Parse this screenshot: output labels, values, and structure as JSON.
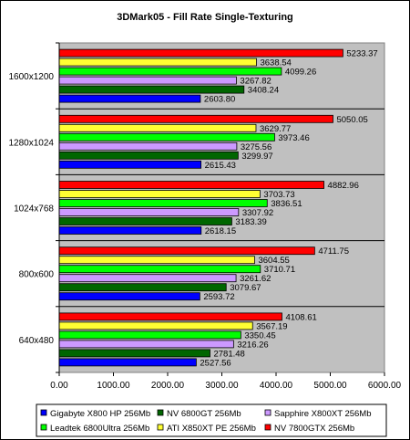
{
  "chart_data": {
    "type": "bar",
    "orientation": "horizontal",
    "title": "3DMark05 - Fill Rate Single-Texturing",
    "xlabel": "",
    "ylabel": "",
    "xlim": [
      0,
      6000
    ],
    "x_ticks": [
      "0.00",
      "1000.00",
      "2000.00",
      "3000.00",
      "4000.00",
      "5000.00",
      "6000.00"
    ],
    "grid": false,
    "legend_position": "bottom",
    "plot_background": "#c0c0c0",
    "categories": [
      "1600x1200",
      "1280x1024",
      "1024x768",
      "800x600",
      "640x480"
    ],
    "series": [
      {
        "name": "NV 7800GTX 256Mb",
        "color": "#ff0000",
        "values": [
          5233.37,
          5050.05,
          4882.96,
          4711.75,
          4108.61
        ],
        "labels": [
          "5233.37",
          "5050.05",
          "4882.96",
          "4711.75",
          "4108.61"
        ]
      },
      {
        "name": "ATI X850XT PE 256Mb",
        "color": "#ffff33",
        "values": [
          3638.54,
          3629.77,
          3703.73,
          3604.55,
          3567.19
        ],
        "labels": [
          "3638.54",
          "3629.77",
          "3703.73",
          "3604.55",
          "3567.19"
        ]
      },
      {
        "name": "Leadtek 6800Ultra 256Mb",
        "color": "#00ff00",
        "values": [
          4099.26,
          3973.46,
          3836.51,
          3710.71,
          3350.45
        ],
        "labels": [
          "4099.26",
          "3973.46",
          "3836.51",
          "3710.71",
          "3350.45"
        ]
      },
      {
        "name": "Sapphire X800XT 256Mb",
        "color": "#cc99ff",
        "values": [
          3267.82,
          3275.56,
          3307.92,
          3261.62,
          3216.26
        ],
        "labels": [
          "3267.82",
          "3275.56",
          "3307.92",
          "3261.62",
          "3216.26"
        ]
      },
      {
        "name": "NV 6800GT 256Mb",
        "color": "#006600",
        "values": [
          3408.24,
          3299.97,
          3183.39,
          3079.67,
          2781.48
        ],
        "labels": [
          "3408.24",
          "3299.97",
          "3183.39",
          "3079.67",
          "2781.48"
        ]
      },
      {
        "name": "Gigabyte X800 HP 256Mb",
        "color": "#0000ff",
        "values": [
          2603.8,
          2615.43,
          2618.15,
          2593.72,
          2527.56
        ],
        "labels": [
          "2603.80",
          "2615.43",
          "2618.15",
          "2593.72",
          "2527.56"
        ]
      }
    ],
    "legend_order": [
      "Gigabyte X800 HP 256Mb",
      "NV 6800GT 256Mb",
      "Sapphire X800XT 256Mb",
      "Leadtek 6800Ultra 256Mb",
      "ATI X850XT PE 256Mb",
      "NV 7800GTX 256Mb"
    ]
  }
}
